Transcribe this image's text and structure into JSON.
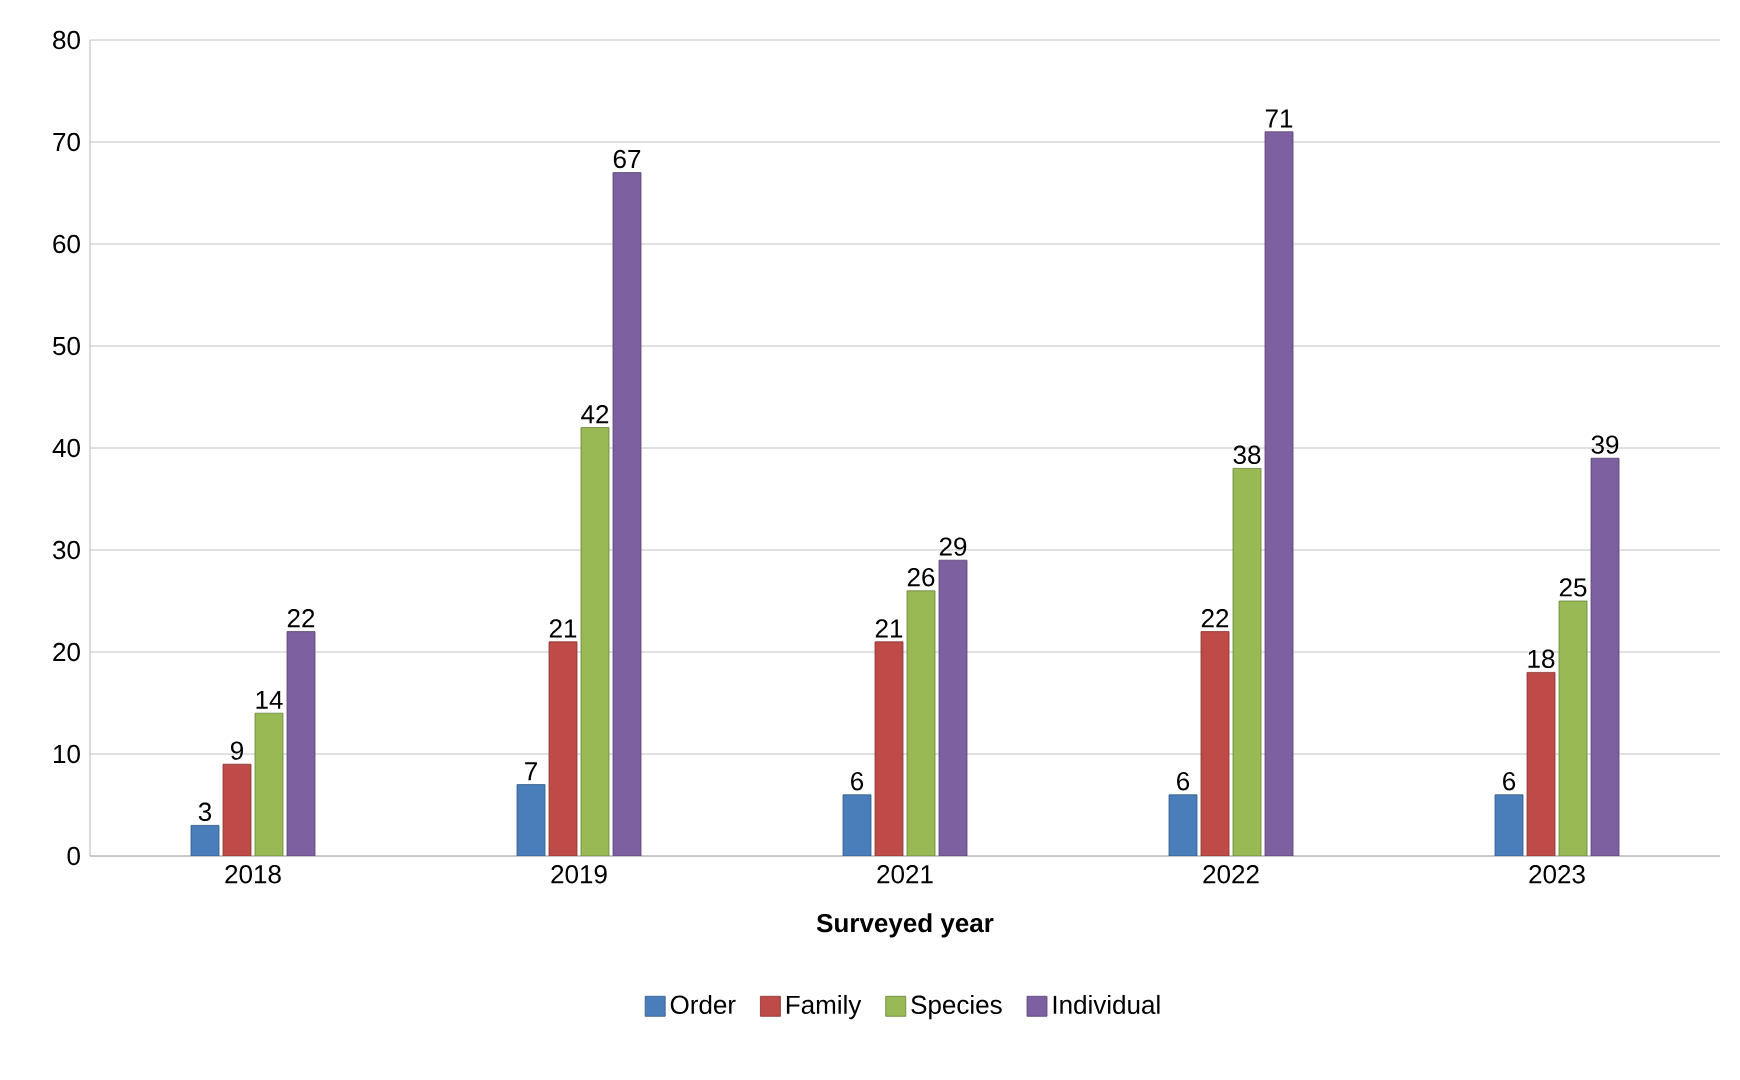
{
  "chart_data": {
    "type": "bar",
    "xlabel": "Surveyed year",
    "categories": [
      "2018",
      "2019",
      "2021",
      "2022",
      "2023"
    ],
    "series": [
      {
        "name": "Order",
        "color": "#4a7ebb",
        "values": [
          3,
          7,
          6,
          6,
          6
        ]
      },
      {
        "name": "Family",
        "color": "#be4b48",
        "values": [
          9,
          21,
          21,
          22,
          18
        ]
      },
      {
        "name": "Species",
        "color": "#98b954",
        "values": [
          14,
          42,
          26,
          38,
          25
        ]
      },
      {
        "name": "Individual",
        "color": "#7d60a0",
        "values": [
          22,
          67,
          29,
          71,
          39
        ]
      }
    ],
    "ylim": [
      0,
      80
    ],
    "yticks": [
      0,
      10,
      20,
      30,
      40,
      50,
      60,
      70,
      80
    ],
    "grid": "y",
    "legend": "bottom",
    "data_labels": true
  }
}
